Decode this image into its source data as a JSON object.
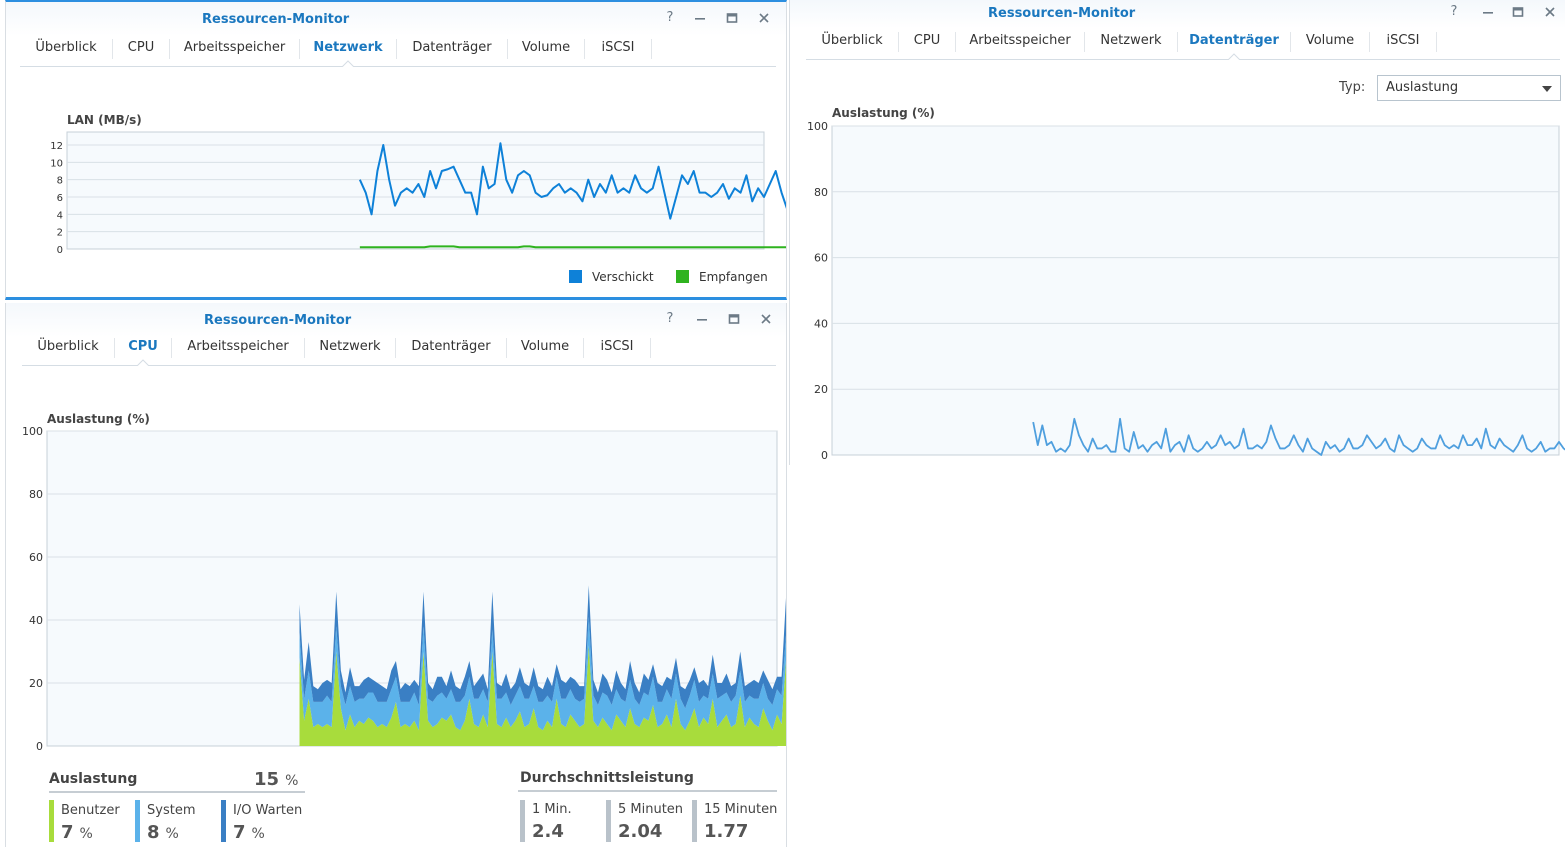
{
  "colors": {
    "accent": "#1b78bf",
    "sent": "#0e81d8",
    "received": "#2fb31f",
    "cpu_user": "#a8dc3c",
    "cpu_system": "#5bb2ea",
    "cpu_io": "#3a7fc4",
    "disk_line": "#4f9fde",
    "load_bar": "#b9c2ca"
  },
  "tabs": [
    "Überblick",
    "CPU",
    "Arbeitsspeicher",
    "Netzwerk",
    "Datenträger",
    "Volume",
    "iSCSI"
  ],
  "network_window": {
    "title": "Ressourcen-Monitor",
    "active_tab": "Netzwerk",
    "chart_label": "LAN (MB/s)",
    "legend": [
      "Verschickt",
      "Empfangen"
    ]
  },
  "cpu_window": {
    "title": "Ressourcen-Monitor",
    "active_tab": "CPU",
    "chart_label": "Auslastung (%)",
    "usage": {
      "heading": "Auslastung",
      "total": "15",
      "unit": "%",
      "items": [
        {
          "label": "Benutzer",
          "value": "7",
          "unit": "%"
        },
        {
          "label": "System",
          "value": "8",
          "unit": "%"
        },
        {
          "label": "I/O Warten",
          "value": "7",
          "unit": "%"
        }
      ]
    },
    "load_average": {
      "heading": "Durchschnittsleistung",
      "items": [
        {
          "label": "1 Min.",
          "value": "2.4"
        },
        {
          "label": "5 Minuten",
          "value": "2.04"
        },
        {
          "label": "15 Minuten",
          "value": "1.77"
        }
      ]
    }
  },
  "disk_window": {
    "title": "Ressourcen-Monitor",
    "active_tab": "Datenträger",
    "type_label": "Typ:",
    "type_value": "Auslastung",
    "chart_label": "Auslastung (%)"
  },
  "chart_data": [
    {
      "type": "line",
      "title": "LAN (MB/s)",
      "ylim": [
        0,
        13.5
      ],
      "yticks": [
        0,
        2,
        4,
        6,
        8,
        10,
        12
      ],
      "grid": true,
      "legend_position": "bottom-right",
      "x_count": 120,
      "series": [
        {
          "name": "Verschickt",
          "start_index": 50,
          "values": [
            8,
            6.5,
            4,
            9,
            12,
            8,
            5,
            6.5,
            7,
            6.5,
            7.5,
            6,
            9,
            7,
            9,
            9.2,
            9.5,
            8,
            6.5,
            6.5,
            4,
            9.5,
            7,
            7.5,
            12.2,
            8,
            6.5,
            8.5,
            9,
            8.5,
            6.5,
            6,
            6.2,
            7,
            7.5,
            6.5,
            7,
            6.5,
            5.5,
            8,
            6,
            7.5,
            6.5,
            8.5,
            6.5,
            7,
            6.5,
            8.5,
            7,
            6.5,
            7,
            9.5,
            6.5,
            3.5,
            6,
            8.5,
            7.5,
            9,
            6.5,
            6.5,
            6,
            6.5,
            7.5,
            5.8,
            7,
            6.5,
            8.5,
            5.5,
            7,
            6,
            7.5,
            9,
            6.5,
            4.5,
            8.5,
            6.5,
            8,
            7,
            6.5,
            8.5,
            6.5,
            7.5,
            6.5,
            6,
            8,
            6.5,
            7.5,
            6,
            6.5,
            7,
            5.5,
            9,
            7,
            11.2,
            8.5,
            7.5,
            6.5,
            10.5,
            8,
            5,
            7,
            6.5,
            7.5,
            4,
            7.5,
            5,
            6,
            6.5,
            7.5,
            7,
            6.8
          ]
        },
        {
          "name": "Empfangen",
          "start_index": 50,
          "values": [
            0.2,
            0.2,
            0.2,
            0.2,
            0.2,
            0.2,
            0.2,
            0.2,
            0.2,
            0.2,
            0.2,
            0.2,
            0.3,
            0.3,
            0.3,
            0.3,
            0.3,
            0.2,
            0.2,
            0.2,
            0.2,
            0.2,
            0.2,
            0.2,
            0.2,
            0.2,
            0.2,
            0.2,
            0.3,
            0.3,
            0.2,
            0.2,
            0.2,
            0.2,
            0.2,
            0.2,
            0.2,
            0.2,
            0.2,
            0.2,
            0.2,
            0.2,
            0.2,
            0.2,
            0.2,
            0.2,
            0.2,
            0.2,
            0.2,
            0.2,
            0.2,
            0.2,
            0.2,
            0.2,
            0.2,
            0.2,
            0.2,
            0.2,
            0.2,
            0.2,
            0.2,
            0.2,
            0.2,
            0.2,
            0.2,
            0.2,
            0.2,
            0.2,
            0.2,
            0.2,
            0.2,
            0.2,
            0.2,
            0.2,
            0.2,
            0.2,
            0.2,
            0.2,
            0.2,
            0.2,
            0.2,
            0.2,
            0.2,
            0.2,
            0.2,
            0.2,
            0.2,
            0.2,
            0.2,
            0.2,
            0.2,
            0.2,
            0.2,
            0.2,
            0.2,
            0.2,
            0.2,
            0.2,
            0.2,
            0.2,
            0.2,
            0.2,
            0.2,
            0.2,
            0.2,
            0.2,
            0.2,
            0.2,
            0.2,
            0.2,
            0.2,
            0.2,
            0.2,
            0.2,
            0.2,
            0.2,
            0.2,
            0.2,
            0.2,
            0.2
          ]
        }
      ]
    },
    {
      "type": "area",
      "title": "Auslastung (%)",
      "ylim": [
        0,
        100
      ],
      "yticks": [
        0,
        20,
        40,
        60,
        80,
        100
      ],
      "grid": true,
      "stacked": true,
      "x_count": 160,
      "start_index": 55,
      "series": [
        {
          "name": "Benutzer",
          "values": [
            28,
            8,
            15,
            6,
            7,
            6,
            7,
            6,
            30,
            12,
            5,
            10,
            6,
            8,
            7,
            9,
            8,
            6,
            7,
            6,
            9,
            14,
            6,
            7,
            6,
            8,
            5,
            30,
            8,
            6,
            7,
            9,
            8,
            10,
            6,
            5,
            8,
            15,
            7,
            6,
            10,
            6,
            30,
            7,
            6,
            9,
            6,
            8,
            11,
            6,
            7,
            12,
            6,
            5,
            8,
            6,
            15,
            7,
            6,
            10,
            8,
            6,
            7,
            32,
            8,
            6,
            9,
            7,
            5,
            10,
            8,
            6,
            12,
            7,
            6,
            9,
            8,
            13,
            6,
            7,
            10,
            6,
            15,
            7,
            5,
            8,
            12,
            6,
            9,
            7,
            15,
            6,
            8,
            10,
            6,
            7,
            16,
            6,
            9,
            7,
            6,
            12,
            8,
            5,
            10,
            7,
            28,
            6,
            8,
            9,
            7,
            6,
            11,
            7,
            6,
            12,
            8,
            7,
            16,
            6,
            30,
            7,
            6,
            8,
            12,
            6,
            7,
            9,
            6,
            10,
            7,
            12,
            6,
            5,
            14,
            6,
            8,
            5,
            10,
            7,
            25
          ]
        },
        {
          "name": "System",
          "values": [
            8,
            7,
            9,
            8,
            7,
            8,
            9,
            8,
            8,
            7,
            8,
            9,
            8,
            7,
            8,
            8,
            9,
            8,
            7,
            8,
            9,
            8,
            8,
            7,
            8,
            9,
            8,
            8,
            7,
            8,
            9,
            8,
            7,
            8,
            8,
            9,
            8,
            7,
            8,
            9,
            8,
            8,
            7,
            8,
            9,
            8,
            7,
            8,
            8,
            9,
            8,
            7,
            8,
            9,
            8,
            8,
            7,
            8,
            9,
            8,
            7,
            8,
            8,
            9,
            8,
            7,
            8,
            9,
            8,
            8,
            7,
            8,
            9,
            8,
            7,
            8,
            8,
            9,
            8,
            7,
            8,
            9,
            8,
            8,
            7,
            8,
            9,
            8,
            7,
            8,
            8,
            9,
            8,
            7,
            8,
            9,
            8,
            8,
            7,
            8,
            9,
            8,
            7,
            8,
            8,
            9,
            8,
            7,
            8,
            9,
            8,
            8,
            7,
            8,
            9,
            8,
            7,
            8,
            8,
            9,
            8,
            7,
            8,
            9,
            8,
            8,
            7,
            8,
            9,
            8,
            7,
            8,
            8,
            9,
            8,
            7,
            8,
            9,
            8,
            8,
            9
          ]
        },
        {
          "name": "I/O Warten",
          "values": [
            9,
            6,
            9,
            5,
            4,
            6,
            5,
            6,
            11,
            5,
            4,
            6,
            5,
            4,
            6,
            5,
            4,
            6,
            5,
            4,
            6,
            5,
            4,
            6,
            5,
            4,
            6,
            11,
            5,
            4,
            6,
            5,
            4,
            6,
            5,
            4,
            6,
            5,
            4,
            6,
            5,
            4,
            12,
            5,
            4,
            6,
            5,
            4,
            6,
            5,
            4,
            6,
            5,
            4,
            6,
            5,
            4,
            6,
            5,
            4,
            6,
            5,
            4,
            10,
            5,
            4,
            6,
            5,
            4,
            6,
            5,
            4,
            6,
            5,
            4,
            6,
            5,
            4,
            6,
            5,
            4,
            6,
            5,
            4,
            6,
            5,
            4,
            6,
            5,
            4,
            6,
            5,
            4,
            6,
            5,
            4,
            6,
            5,
            4,
            6,
            5,
            4,
            6,
            5,
            4,
            6,
            12,
            5,
            4,
            6,
            5,
            4,
            6,
            5,
            4,
            6,
            5,
            4,
            6,
            5,
            10,
            5,
            4,
            6,
            5,
            4,
            6,
            5,
            4,
            6,
            5,
            4,
            6,
            5,
            4,
            6,
            5,
            4,
            6,
            5,
            5
          ]
        }
      ]
    },
    {
      "type": "line",
      "title": "Auslastung (%)",
      "ylim": [
        0,
        100
      ],
      "yticks": [
        0,
        20,
        40,
        60,
        80,
        100
      ],
      "grid": true,
      "x_count": 160,
      "start_index": 44,
      "series": [
        {
          "name": "Datenträger",
          "values": [
            10,
            3,
            9,
            3,
            4,
            1,
            2,
            1,
            3,
            11,
            6,
            3,
            1,
            5,
            2,
            2,
            3,
            1,
            1,
            11,
            2,
            1,
            7,
            2,
            3,
            1,
            3,
            4,
            2,
            8,
            1,
            3,
            4,
            1,
            6,
            2,
            1,
            2,
            4,
            2,
            3,
            6,
            3,
            4,
            2,
            3,
            8,
            2,
            2,
            3,
            2,
            4,
            9,
            5,
            2,
            2,
            3,
            6,
            3,
            1,
            5,
            2,
            1,
            0,
            4,
            2,
            3,
            1,
            2,
            5,
            2,
            2,
            3,
            6,
            4,
            2,
            3,
            5,
            2,
            1,
            6,
            3,
            2,
            1,
            2,
            5,
            3,
            2,
            2,
            6,
            3,
            2,
            3,
            2,
            6,
            3,
            3,
            5,
            2,
            8,
            3,
            2,
            5,
            3,
            2,
            1,
            3,
            6,
            2,
            1,
            2,
            4,
            1,
            2,
            2,
            4,
            2,
            1,
            3,
            4,
            1,
            2,
            4,
            5,
            2,
            8,
            2,
            1,
            4,
            2,
            6,
            5,
            2,
            1,
            5,
            2
          ]
        }
      ]
    }
  ]
}
